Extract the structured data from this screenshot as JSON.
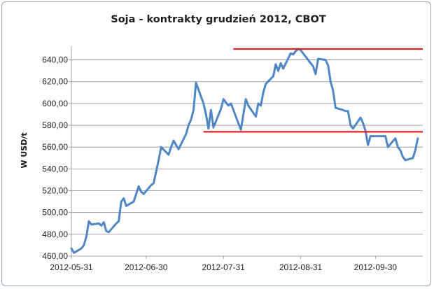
{
  "chart_data": {
    "type": "line",
    "title": "Soja - kontrakty grudzień 2012, CBOT",
    "xlabel": "",
    "ylabel": "W USD/t",
    "ylim": [
      460,
      650
    ],
    "yticks": [
      "460,00",
      "480,00",
      "500,00",
      "520,00",
      "540,00",
      "560,00",
      "580,00",
      "600,00",
      "620,00",
      "640,00"
    ],
    "ytick_values": [
      460,
      480,
      500,
      520,
      540,
      560,
      580,
      600,
      620,
      640
    ],
    "xticks": [
      "2012-05-31",
      "2012-06-30",
      "2012-07-31",
      "2012-08-31",
      "2012-09-30"
    ],
    "xtick_values": [
      "2012-05-31",
      "2012-06-30",
      "2012-07-31",
      "2012-08-31",
      "2012-09-30"
    ],
    "xlim": [
      "2012-05-31",
      "2012-10-19"
    ],
    "grid": "horizontal",
    "legend": "none",
    "series": [
      {
        "color": "#4f86c6",
        "points": [
          [
            "2012-05-31",
            467
          ],
          [
            "2012-06-01",
            463
          ],
          [
            "2012-06-04",
            467
          ],
          [
            "2012-06-05",
            470
          ],
          [
            "2012-06-06",
            478
          ],
          [
            "2012-06-07",
            492
          ],
          [
            "2012-06-08",
            489
          ],
          [
            "2012-06-11",
            490
          ],
          [
            "2012-06-12",
            488
          ],
          [
            "2012-06-13",
            491
          ],
          [
            "2012-06-14",
            483
          ],
          [
            "2012-06-15",
            482
          ],
          [
            "2012-06-18",
            490
          ],
          [
            "2012-06-19",
            492
          ],
          [
            "2012-06-20",
            510
          ],
          [
            "2012-06-21",
            513
          ],
          [
            "2012-06-22",
            506
          ],
          [
            "2012-06-25",
            510
          ],
          [
            "2012-06-26",
            517
          ],
          [
            "2012-06-27",
            524
          ],
          [
            "2012-06-28",
            519
          ],
          [
            "2012-06-29",
            517
          ],
          [
            "2012-07-02",
            525
          ],
          [
            "2012-07-03",
            527
          ],
          [
            "2012-07-05",
            548
          ],
          [
            "2012-07-06",
            560
          ],
          [
            "2012-07-09",
            553
          ],
          [
            "2012-07-10",
            560
          ],
          [
            "2012-07-11",
            566
          ],
          [
            "2012-07-12",
            562
          ],
          [
            "2012-07-13",
            558
          ],
          [
            "2012-07-16",
            572
          ],
          [
            "2012-07-17",
            580
          ],
          [
            "2012-07-18",
            585
          ],
          [
            "2012-07-19",
            594
          ],
          [
            "2012-07-20",
            619
          ],
          [
            "2012-07-23",
            600
          ],
          [
            "2012-07-24",
            590
          ],
          [
            "2012-07-25",
            577
          ],
          [
            "2012-07-26",
            594
          ],
          [
            "2012-07-27",
            578
          ],
          [
            "2012-07-30",
            595
          ],
          [
            "2012-07-31",
            604
          ],
          [
            "2012-08-01",
            601
          ],
          [
            "2012-08-02",
            598
          ],
          [
            "2012-08-03",
            600
          ],
          [
            "2012-08-06",
            582
          ],
          [
            "2012-08-07",
            576
          ],
          [
            "2012-08-08",
            590
          ],
          [
            "2012-08-09",
            604
          ],
          [
            "2012-08-10",
            598
          ],
          [
            "2012-08-13",
            588
          ],
          [
            "2012-08-14",
            600
          ],
          [
            "2012-08-15",
            598
          ],
          [
            "2012-08-16",
            610
          ],
          [
            "2012-08-17",
            618
          ],
          [
            "2012-08-20",
            625
          ],
          [
            "2012-08-21",
            636
          ],
          [
            "2012-08-22",
            630
          ],
          [
            "2012-08-23",
            637
          ],
          [
            "2012-08-24",
            632
          ],
          [
            "2012-08-27",
            646
          ],
          [
            "2012-08-28",
            645
          ],
          [
            "2012-08-29",
            648
          ],
          [
            "2012-08-30",
            650
          ],
          [
            "2012-08-31",
            649
          ],
          [
            "2012-09-03",
            640
          ],
          [
            "2012-09-04",
            637
          ],
          [
            "2012-09-05",
            634
          ],
          [
            "2012-09-06",
            627
          ],
          [
            "2012-09-07",
            641
          ],
          [
            "2012-09-10",
            640
          ],
          [
            "2012-09-11",
            635
          ],
          [
            "2012-09-12",
            620
          ],
          [
            "2012-09-13",
            612
          ],
          [
            "2012-09-14",
            596
          ],
          [
            "2012-09-17",
            594
          ],
          [
            "2012-09-18",
            593
          ],
          [
            "2012-09-19",
            593
          ],
          [
            "2012-09-20",
            580
          ],
          [
            "2012-09-21",
            577
          ],
          [
            "2012-09-24",
            587
          ],
          [
            "2012-09-25",
            582
          ],
          [
            "2012-09-26",
            575
          ],
          [
            "2012-09-27",
            562
          ],
          [
            "2012-09-28",
            570
          ],
          [
            "2012-10-01",
            570
          ],
          [
            "2012-10-02",
            570
          ],
          [
            "2012-10-03",
            570
          ],
          [
            "2012-10-04",
            570
          ],
          [
            "2012-10-05",
            560
          ],
          [
            "2012-10-08",
            568
          ],
          [
            "2012-10-09",
            560
          ],
          [
            "2012-10-10",
            557
          ],
          [
            "2012-10-11",
            551
          ],
          [
            "2012-10-12",
            548
          ],
          [
            "2012-10-15",
            550
          ],
          [
            "2012-10-16",
            557
          ],
          [
            "2012-10-17",
            568
          ]
        ]
      }
    ],
    "annotations": [
      {
        "type": "hline",
        "y": 650,
        "x_from": "2012-08-04",
        "x_to": "2012-10-19",
        "color": "#e02020"
      },
      {
        "type": "hline",
        "y": 574,
        "x_from": "2012-07-23",
        "x_to": "2012-10-19",
        "color": "#e02020"
      }
    ]
  }
}
